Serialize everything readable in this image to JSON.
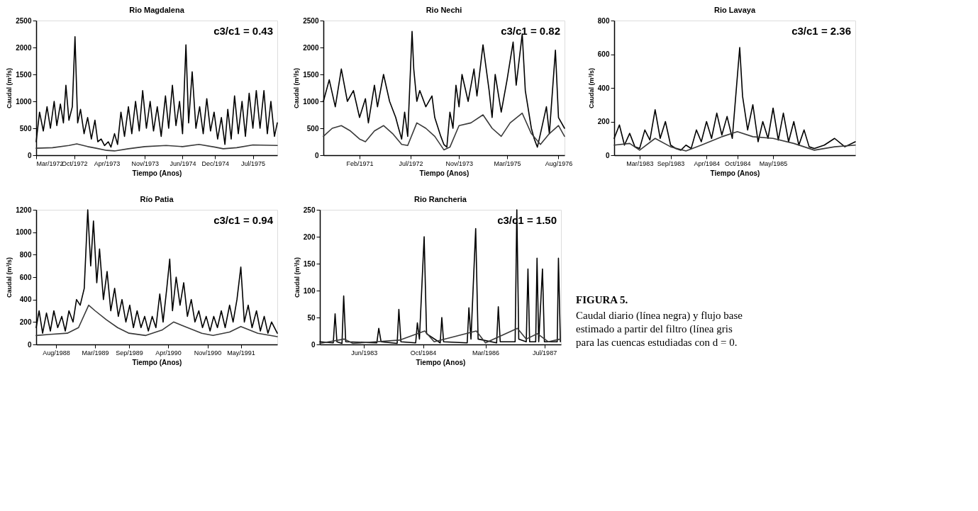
{
  "chart_data": [
    {
      "type": "line",
      "title": "Rio Magdalena",
      "xlabel": "Tiempo (Anos)",
      "ylabel": "Caudal (m³/s)",
      "annotations": [
        "c3/c1 = 0.43"
      ],
      "grid": false,
      "line_style": "solid",
      "marker": "none",
      "xlim": [
        "1972-03-01",
        "1975-11-15"
      ],
      "ylim": [
        0,
        2500
      ],
      "yticks": [
        0,
        500,
        1000,
        1500,
        2000,
        2500
      ],
      "xticks": [
        {
          "value": "1972-03-01",
          "label": "Mar/1972"
        },
        {
          "value": "1972-10-01",
          "label": "Oct/1972"
        },
        {
          "value": "1973-04-01",
          "label": "Apr/1973"
        },
        {
          "value": "1973-11-01",
          "label": "Nov/1973"
        },
        {
          "value": "1974-06-01",
          "label": "Jun/1974"
        },
        {
          "value": "1974-12-01",
          "label": "Dec/1974"
        },
        {
          "value": "1975-07-01",
          "label": "Jul/1975"
        }
      ],
      "series": [
        {
          "color": "#000000",
          "x": [
            "1972-03-01",
            "1972-03-20",
            "1972-04-10",
            "1972-05-01",
            "1972-05-20",
            "1972-06-10",
            "1972-06-25",
            "1972-07-15",
            "1972-08-01",
            "1972-08-15",
            "1972-09-01",
            "1972-09-20",
            "1972-10-05",
            "1972-10-20",
            "1972-11-05",
            "1972-11-25",
            "1972-12-15",
            "1973-01-05",
            "1973-01-25",
            "1973-02-10",
            "1973-03-01",
            "1973-03-20",
            "1973-04-10",
            "1973-04-25",
            "1973-05-15",
            "1973-06-01",
            "1973-06-20",
            "1973-07-10",
            "1973-08-01",
            "1973-08-20",
            "1973-09-10",
            "1973-10-01",
            "1973-10-20",
            "1973-11-10",
            "1973-12-01",
            "1973-12-20",
            "1974-01-10",
            "1974-02-01",
            "1974-02-25",
            "1974-03-15",
            "1974-04-05",
            "1974-04-25",
            "1974-05-15",
            "1974-06-01",
            "1974-06-20",
            "1974-07-05",
            "1974-07-25",
            "1974-08-15",
            "1974-09-05",
            "1974-09-25",
            "1974-10-15",
            "1974-11-05",
            "1974-11-25",
            "1974-12-15",
            "1975-01-05",
            "1975-01-25",
            "1975-02-10",
            "1975-03-01",
            "1975-03-20",
            "1975-04-10",
            "1975-05-01",
            "1975-05-20",
            "1975-06-10",
            "1975-07-01",
            "1975-07-20",
            "1975-08-10",
            "1975-09-01",
            "1975-09-20",
            "1975-10-10",
            "1975-10-30",
            "1975-11-15"
          ],
          "values": [
            250,
            800,
            450,
            900,
            500,
            1000,
            550,
            950,
            600,
            1300,
            650,
            900,
            2200,
            600,
            850,
            400,
            700,
            300,
            650,
            250,
            300,
            180,
            250,
            150,
            400,
            200,
            800,
            350,
            900,
            400,
            1000,
            450,
            1200,
            500,
            1000,
            450,
            900,
            350,
            1100,
            500,
            1300,
            550,
            1000,
            400,
            2050,
            600,
            1550,
            500,
            900,
            400,
            1050,
            450,
            800,
            300,
            700,
            200,
            850,
            300,
            1100,
            400,
            1000,
            350,
            1150,
            500,
            1200,
            500,
            1200,
            400,
            1000,
            350,
            600
          ]
        },
        {
          "color": "#3a3a3a",
          "x": [
            "1972-03-01",
            "1972-06-01",
            "1972-09-01",
            "1972-10-15",
            "1972-12-15",
            "1973-02-01",
            "1973-04-01",
            "1973-05-15",
            "1973-08-01",
            "1973-11-01",
            "1974-03-01",
            "1974-06-01",
            "1974-09-01",
            "1974-12-01",
            "1975-01-15",
            "1975-04-01",
            "1975-07-01",
            "1975-11-15"
          ],
          "values": [
            130,
            140,
            180,
            210,
            160,
            130,
            90,
            80,
            120,
            160,
            180,
            160,
            200,
            150,
            120,
            140,
            190,
            180
          ]
        }
      ]
    },
    {
      "type": "line",
      "title": "Rio Nechi",
      "xlabel": "Tiempo (Anos)",
      "ylabel": "Caudal (m³/s)",
      "annotations": [
        "c3/c1 = 0.82"
      ],
      "grid": false,
      "line_style": "solid",
      "marker": "none",
      "xlim": [
        "1970-02-01",
        "1976-10-01"
      ],
      "ylim": [
        0,
        2500
      ],
      "yticks": [
        0,
        500,
        1000,
        1500,
        2000,
        2500
      ],
      "xticks": [
        {
          "value": "1971-02-01",
          "label": "Feb/1971"
        },
        {
          "value": "1972-07-01",
          "label": "Jul/1972"
        },
        {
          "value": "1973-11-01",
          "label": "Nov/1973"
        },
        {
          "value": "1975-03-01",
          "label": "Mar/1975"
        },
        {
          "value": "1976-08-01",
          "label": "Aug/1976"
        }
      ],
      "series": [
        {
          "color": "#000000",
          "x": [
            "1970-02-01",
            "1970-04-01",
            "1970-06-01",
            "1970-08-01",
            "1970-10-01",
            "1970-12-01",
            "1971-02-01",
            "1971-04-01",
            "1971-05-01",
            "1971-07-01",
            "1971-08-01",
            "1971-10-01",
            "1971-12-01",
            "1972-02-01",
            "1972-03-01",
            "1972-04-01",
            "1972-05-01",
            "1972-06-01",
            "1972-07-15",
            "1972-08-01",
            "1972-09-01",
            "1972-10-01",
            "1972-12-01",
            "1973-02-01",
            "1973-03-01",
            "1973-05-01",
            "1973-06-01",
            "1973-07-01",
            "1973-08-01",
            "1973-09-01",
            "1973-10-01",
            "1973-11-01",
            "1973-12-01",
            "1974-02-01",
            "1974-04-01",
            "1974-05-01",
            "1974-07-01",
            "1974-09-01",
            "1974-10-01",
            "1974-11-01",
            "1975-01-01",
            "1975-03-01",
            "1975-05-01",
            "1975-06-01",
            "1975-08-01",
            "1975-09-01",
            "1975-11-01",
            "1975-12-01",
            "1976-01-01",
            "1976-02-01",
            "1976-04-01",
            "1976-05-01",
            "1976-07-01",
            "1976-08-01",
            "1976-10-01"
          ],
          "values": [
            1000,
            1400,
            900,
            1600,
            1000,
            1200,
            700,
            1050,
            600,
            1300,
            900,
            1500,
            1000,
            700,
            500,
            300,
            800,
            350,
            2300,
            1600,
            1000,
            1200,
            900,
            1100,
            700,
            350,
            200,
            150,
            800,
            500,
            1300,
            900,
            1500,
            1000,
            1600,
            1100,
            2050,
            1200,
            700,
            1500,
            800,
            1400,
            2100,
            1300,
            2250,
            1200,
            500,
            300,
            150,
            400,
            900,
            400,
            1950,
            700,
            500
          ]
        },
        {
          "color": "#3a3a3a",
          "x": [
            "1970-02-01",
            "1970-05-01",
            "1970-08-01",
            "1970-11-01",
            "1971-02-01",
            "1971-04-01",
            "1971-07-01",
            "1971-10-01",
            "1972-01-01",
            "1972-04-01",
            "1972-06-01",
            "1972-09-01",
            "1972-12-01",
            "1973-03-01",
            "1973-06-01",
            "1973-08-01",
            "1973-11-01",
            "1974-03-01",
            "1974-07-01",
            "1974-10-01",
            "1975-01-01",
            "1975-04-01",
            "1975-08-01",
            "1975-11-01",
            "1976-02-01",
            "1976-05-01",
            "1976-08-01",
            "1976-10-01"
          ],
          "values": [
            350,
            500,
            550,
            450,
            300,
            250,
            450,
            550,
            400,
            200,
            180,
            600,
            500,
            350,
            100,
            150,
            550,
            600,
            750,
            500,
            350,
            600,
            780,
            400,
            200,
            400,
            550,
            350
          ]
        }
      ]
    },
    {
      "type": "line",
      "title": "Rio Lavaya",
      "xlabel": "Tiempo (Anos)",
      "ylabel": "Caudal (m³/s)",
      "annotations": [
        "c3/c1 = 2.36"
      ],
      "grid": false,
      "line_style": "solid",
      "marker": "none",
      "xlim": [
        "1982-10-01",
        "1986-09-01"
      ],
      "ylim": [
        0,
        800
      ],
      "yticks": [
        0,
        200,
        400,
        600,
        800
      ],
      "xticks": [
        {
          "value": "1983-03-01",
          "label": "Mar/1983"
        },
        {
          "value": "1983-09-01",
          "label": "Sep/1983"
        },
        {
          "value": "1984-04-01",
          "label": "Apr/1984"
        },
        {
          "value": "1984-10-01",
          "label": "Oct/1984"
        },
        {
          "value": "1985-05-01",
          "label": "May/1985"
        }
      ],
      "series": [
        {
          "color": "#000000",
          "x": [
            "1982-10-01",
            "1982-11-01",
            "1982-12-01",
            "1983-01-01",
            "1983-02-01",
            "1983-03-01",
            "1983-04-01",
            "1983-05-01",
            "1983-06-01",
            "1983-07-01",
            "1983-08-01",
            "1983-09-01",
            "1983-10-01",
            "1983-11-01",
            "1983-12-01",
            "1984-01-01",
            "1984-02-01",
            "1984-03-01",
            "1984-04-01",
            "1984-05-01",
            "1984-06-01",
            "1984-07-01",
            "1984-08-01",
            "1984-09-01",
            "1984-10-15",
            "1984-11-01",
            "1984-12-01",
            "1985-01-01",
            "1985-02-01",
            "1985-03-01",
            "1985-04-01",
            "1985-05-01",
            "1985-06-01",
            "1985-07-01",
            "1985-08-01",
            "1985-09-01",
            "1985-10-01",
            "1985-11-01",
            "1985-12-01",
            "1986-01-01",
            "1986-03-01",
            "1986-05-01",
            "1986-07-01",
            "1986-09-01"
          ],
          "values": [
            100,
            180,
            60,
            130,
            50,
            40,
            150,
            90,
            270,
            100,
            200,
            60,
            40,
            30,
            60,
            40,
            150,
            80,
            200,
            100,
            250,
            120,
            230,
            100,
            640,
            350,
            150,
            300,
            80,
            200,
            100,
            280,
            90,
            250,
            80,
            200,
            60,
            150,
            50,
            40,
            60,
            100,
            50,
            80
          ]
        },
        {
          "color": "#3a3a3a",
          "x": [
            "1982-10-01",
            "1983-01-01",
            "1983-03-01",
            "1983-06-01",
            "1983-09-01",
            "1983-12-01",
            "1984-03-01",
            "1984-07-01",
            "1984-10-01",
            "1985-01-01",
            "1985-05-01",
            "1985-09-01",
            "1986-01-01",
            "1986-05-01",
            "1986-09-01"
          ],
          "values": [
            60,
            70,
            30,
            100,
            50,
            25,
            60,
            110,
            140,
            110,
            100,
            70,
            30,
            50,
            60
          ]
        }
      ]
    },
    {
      "type": "line",
      "title": "Río Patia",
      "xlabel": "Tiempo (Anos)",
      "ylabel": "Caudal (m³/s)",
      "annotations": [
        "c3/c1 = 0.94"
      ],
      "grid": false,
      "line_style": "solid",
      "marker": "none",
      "xlim": [
        "1988-04-15",
        "1991-11-15"
      ],
      "ylim": [
        0,
        1200
      ],
      "yticks": [
        0,
        200,
        400,
        600,
        800,
        1000,
        1200
      ],
      "xticks": [
        {
          "value": "1988-08-01",
          "label": "Aug/1988"
        },
        {
          "value": "1989-03-01",
          "label": "Mar/1989"
        },
        {
          "value": "1989-09-01",
          "label": "Sep/1989"
        },
        {
          "value": "1990-04-01",
          "label": "Apr/1990"
        },
        {
          "value": "1990-11-01",
          "label": "Nov/1990"
        },
        {
          "value": "1991-05-01",
          "label": "May/1991"
        }
      ],
      "series": [
        {
          "color": "#000000",
          "x": [
            "1988-04-15",
            "1988-05-01",
            "1988-05-20",
            "1988-06-10",
            "1988-07-01",
            "1988-07-20",
            "1988-08-10",
            "1988-09-01",
            "1988-09-20",
            "1988-10-10",
            "1988-11-01",
            "1988-11-20",
            "1988-12-10",
            "1989-01-01",
            "1989-01-20",
            "1989-02-05",
            "1989-02-20",
            "1989-03-10",
            "1989-03-25",
            "1989-04-15",
            "1989-05-05",
            "1989-05-25",
            "1989-06-15",
            "1989-07-05",
            "1989-07-25",
            "1989-08-15",
            "1989-09-05",
            "1989-09-25",
            "1989-10-15",
            "1989-11-05",
            "1989-11-25",
            "1989-12-15",
            "1990-01-05",
            "1990-01-25",
            "1990-02-15",
            "1990-03-05",
            "1990-03-25",
            "1990-04-10",
            "1990-04-25",
            "1990-05-15",
            "1990-06-05",
            "1990-06-25",
            "1990-07-15",
            "1990-08-05",
            "1990-08-25",
            "1990-09-15",
            "1990-10-05",
            "1990-10-25",
            "1990-11-15",
            "1990-12-05",
            "1990-12-25",
            "1991-01-15",
            "1991-02-05",
            "1991-03-01",
            "1991-03-20",
            "1991-04-10",
            "1991-05-01",
            "1991-05-20",
            "1991-06-10",
            "1991-07-01",
            "1991-07-25",
            "1991-08-15",
            "1991-09-05",
            "1991-09-25",
            "1991-10-15",
            "1991-11-15"
          ],
          "values": [
            150,
            300,
            100,
            280,
            120,
            300,
            150,
            250,
            120,
            300,
            200,
            400,
            350,
            500,
            1200,
            700,
            1100,
            550,
            850,
            400,
            650,
            300,
            500,
            250,
            400,
            200,
            350,
            150,
            300,
            150,
            250,
            120,
            250,
            150,
            450,
            200,
            500,
            760,
            300,
            600,
            350,
            550,
            250,
            400,
            200,
            300,
            150,
            250,
            120,
            250,
            150,
            300,
            150,
            350,
            200,
            400,
            690,
            200,
            350,
            150,
            300,
            120,
            250,
            100,
            200,
            100
          ]
        },
        {
          "color": "#3a3a3a",
          "x": [
            "1988-04-15",
            "1988-07-01",
            "1988-10-01",
            "1988-12-01",
            "1989-01-25",
            "1989-03-01",
            "1989-05-01",
            "1989-07-01",
            "1989-09-01",
            "1989-12-01",
            "1990-03-01",
            "1990-05-01",
            "1990-07-01",
            "1990-10-01",
            "1990-12-01",
            "1991-03-01",
            "1991-05-01",
            "1991-08-01",
            "1991-11-15"
          ],
          "values": [
            80,
            90,
            100,
            150,
            350,
            300,
            220,
            150,
            100,
            80,
            130,
            200,
            160,
            100,
            80,
            110,
            160,
            100,
            70
          ]
        }
      ]
    },
    {
      "type": "line",
      "title": "Rio Rancheria",
      "xlabel": "Tiempo (Anos)",
      "ylabel": "Caudal (m³/s)",
      "annotations": [
        "c3/c1 = 1.50"
      ],
      "grid": false,
      "line_style": "solid",
      "marker": "none",
      "xlim": [
        "1982-06-01",
        "1987-11-15"
      ],
      "ylim": [
        0,
        250
      ],
      "yticks": [
        0,
        50,
        100,
        150,
        200,
        250
      ],
      "xticks": [
        {
          "value": "1983-06-01",
          "label": "Jun/1983"
        },
        {
          "value": "1984-10-01",
          "label": "Oct/1984"
        },
        {
          "value": "1986-03-01",
          "label": "Mar/1986"
        },
        {
          "value": "1987-07-01",
          "label": "Jul/1987"
        }
      ],
      "series": [
        {
          "color": "#000000",
          "x": [
            "1982-06-01",
            "1982-09-20",
            "1982-10-05",
            "1982-10-20",
            "1982-12-01",
            "1982-12-15",
            "1983-01-01",
            "1983-09-15",
            "1983-10-01",
            "1983-10-20",
            "1984-03-01",
            "1984-03-15",
            "1984-04-01",
            "1984-08-01",
            "1984-08-15",
            "1984-09-01",
            "1984-10-10",
            "1984-10-30",
            "1985-02-20",
            "1985-03-05",
            "1985-03-20",
            "1985-10-01",
            "1985-10-15",
            "1985-11-01",
            "1985-12-10",
            "1985-12-30",
            "1986-06-01",
            "1986-06-15",
            "1986-07-01",
            "1986-11-01",
            "1986-11-15",
            "1986-12-01",
            "1987-02-01",
            "1987-02-15",
            "1987-03-01",
            "1987-04-20",
            "1987-05-01",
            "1987-05-15",
            "1987-06-15",
            "1987-07-01",
            "1987-10-15",
            "1987-10-25",
            "1987-11-10"
          ],
          "values": [
            5,
            3,
            57,
            5,
            2,
            90,
            5,
            3,
            30,
            5,
            2,
            65,
            5,
            3,
            40,
            10,
            200,
            20,
            3,
            50,
            5,
            3,
            68,
            10,
            215,
            10,
            3,
            70,
            5,
            5,
            250,
            10,
            5,
            140,
            5,
            5,
            160,
            5,
            140,
            5,
            5,
            160,
            5
          ]
        },
        {
          "color": "#3a3a3a",
          "x": [
            "1982-06-01",
            "1982-12-20",
            "1983-03-01",
            "1984-03-20",
            "1984-10-15",
            "1985-01-01",
            "1985-12-15",
            "1986-03-01",
            "1986-11-20",
            "1987-02-01",
            "1987-05-05",
            "1987-08-01",
            "1987-11-10"
          ],
          "values": [
            2,
            10,
            2,
            8,
            25,
            5,
            25,
            3,
            30,
            10,
            20,
            5,
            10
          ]
        }
      ]
    },
    {
      "type": "other",
      "title": "FIGURA 5.",
      "annotations": [
        "Caudal diario (línea negra) y flujo base",
        "estimado a partir del filtro (línea gris",
        "para las cuencas estudiadas con d = 0."
      ]
    }
  ]
}
